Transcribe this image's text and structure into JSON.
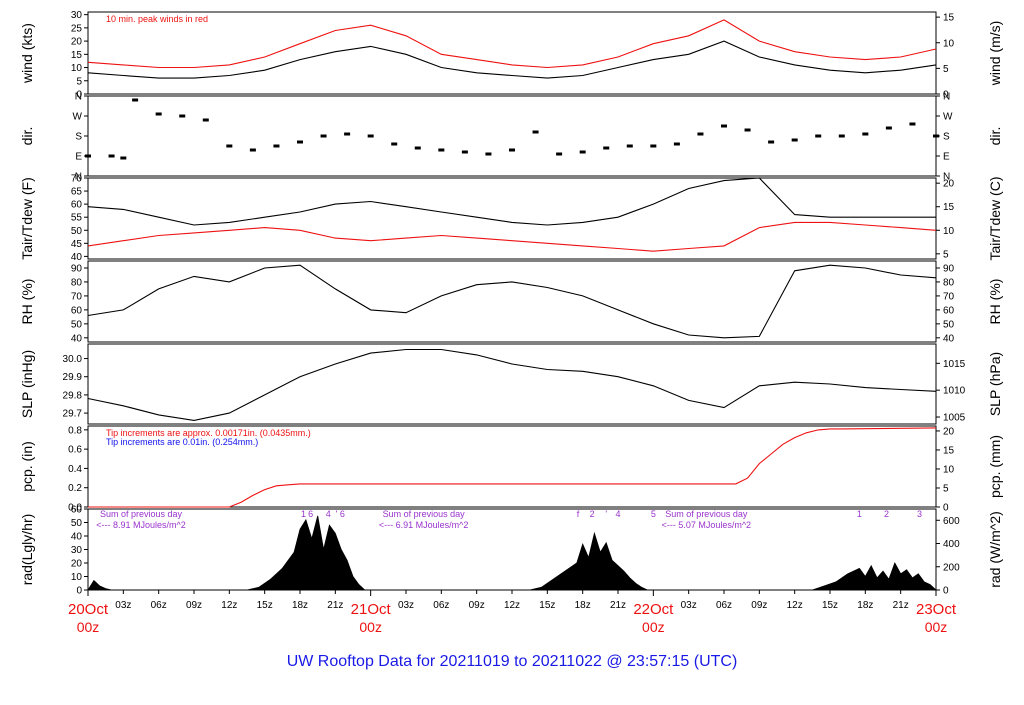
{
  "title": "UW Rooftop Data for 20211019  to  20211022 @ 23:57:15  (UTC)",
  "colors": {
    "red": "#ee1111",
    "blue": "#1111ee",
    "purple": "#9933cc",
    "title": "#1a1ae6"
  },
  "chart_data": [
    {
      "type": "line",
      "id": "wind",
      "ylabel": "wind (kts)",
      "ylabel_right": "wind (m/s)",
      "ylim": [
        0,
        31
      ],
      "yticks": [
        "0",
        "5",
        "10",
        "15",
        "20",
        "25",
        "30"
      ],
      "ylim_right": [
        0,
        16
      ],
      "yticks_right": [
        "0",
        "5",
        "10",
        "15"
      ],
      "annotation": "10 min. peak winds in red",
      "series": [
        {
          "color": "#000000",
          "x": [
            0,
            3,
            6,
            9,
            12,
            15,
            18,
            21,
            24,
            27,
            30,
            33,
            36,
            39,
            42,
            45,
            48,
            51,
            54,
            57,
            60,
            63,
            66,
            69,
            72
          ],
          "values": [
            8,
            7,
            6,
            6,
            7,
            9,
            13,
            16,
            18,
            15,
            10,
            8,
            7,
            6,
            7,
            10,
            13,
            15,
            20,
            14,
            11,
            9,
            8,
            9,
            11
          ]
        },
        {
          "color": "#ee1111",
          "x": [
            0,
            3,
            6,
            9,
            12,
            15,
            18,
            21,
            24,
            27,
            30,
            33,
            36,
            39,
            42,
            45,
            48,
            51,
            54,
            57,
            60,
            63,
            66,
            69,
            72
          ],
          "values": [
            12,
            11,
            10,
            10,
            11,
            14,
            19,
            24,
            26,
            22,
            15,
            13,
            11,
            10,
            11,
            14,
            19,
            22,
            28,
            20,
            16,
            14,
            13,
            14,
            17
          ]
        }
      ]
    },
    {
      "type": "scatter",
      "id": "dir",
      "ylabel": "dir.",
      "ylabel_right": "dir.",
      "ylim": [
        0,
        4
      ],
      "yticks": [
        "N",
        "E",
        "S",
        "W",
        "N"
      ],
      "yticks_right": [
        "N",
        "E",
        "S",
        "W",
        "N"
      ],
      "series": [
        {
          "color": "#000000",
          "x": [
            0,
            2,
            3,
            4,
            6,
            8,
            10,
            12,
            14,
            16,
            18,
            20,
            22,
            24,
            26,
            28,
            30,
            32,
            34,
            36,
            38,
            40,
            42,
            44,
            46,
            48,
            50,
            52,
            54,
            56,
            58,
            60,
            62,
            64,
            66,
            68,
            70,
            72
          ],
          "values": [
            1,
            1,
            0.9,
            3.8,
            3.1,
            3.0,
            2.8,
            1.5,
            1.3,
            1.5,
            1.7,
            2.0,
            2.1,
            2.0,
            1.6,
            1.4,
            1.3,
            1.2,
            1.1,
            1.3,
            2.2,
            1.1,
            1.2,
            1.4,
            1.5,
            1.5,
            1.6,
            2.1,
            2.5,
            2.3,
            1.7,
            1.8,
            2.0,
            2.0,
            2.1,
            2.4,
            2.6,
            2.0
          ]
        }
      ]
    },
    {
      "type": "line",
      "id": "temp",
      "ylabel": "Tair/Tdew (F)",
      "ylabel_right": "Tair/Tdew (C)",
      "ylim": [
        39,
        70
      ],
      "yticks": [
        "40",
        "45",
        "50",
        "55",
        "60",
        "65",
        "70"
      ],
      "ylim_right": [
        3.9,
        21.1
      ],
      "yticks_right": [
        "5",
        "10",
        "15",
        "20"
      ],
      "series": [
        {
          "color": "#000000",
          "x": [
            0,
            3,
            6,
            9,
            12,
            15,
            18,
            21,
            24,
            27,
            30,
            33,
            36,
            39,
            42,
            45,
            48,
            51,
            54,
            57,
            60,
            63,
            66,
            69,
            72
          ],
          "values": [
            59,
            58,
            55,
            52,
            53,
            55,
            57,
            60,
            61,
            59,
            57,
            55,
            53,
            52,
            53,
            55,
            60,
            66,
            69,
            70,
            56,
            55,
            55,
            55,
            55
          ]
        },
        {
          "color": "#ee1111",
          "x": [
            0,
            3,
            6,
            9,
            12,
            15,
            18,
            21,
            24,
            27,
            30,
            33,
            36,
            39,
            42,
            45,
            48,
            51,
            54,
            57,
            60,
            63,
            66,
            69,
            72
          ],
          "values": [
            44,
            46,
            48,
            49,
            50,
            51,
            50,
            47,
            46,
            47,
            48,
            47,
            46,
            45,
            44,
            43,
            42,
            43,
            44,
            51,
            53,
            53,
            52,
            51,
            50
          ]
        }
      ]
    },
    {
      "type": "line",
      "id": "rh",
      "ylabel": "RH (%)",
      "ylabel_right": "RH (%)",
      "ylim": [
        37,
        95
      ],
      "yticks": [
        "40",
        "50",
        "60",
        "70",
        "80",
        "90"
      ],
      "yticks_right": [
        "40",
        "50",
        "60",
        "70",
        "80",
        "90"
      ],
      "series": [
        {
          "color": "#000000",
          "x": [
            0,
            3,
            6,
            9,
            12,
            15,
            18,
            21,
            24,
            27,
            30,
            33,
            36,
            39,
            42,
            45,
            48,
            51,
            54,
            57,
            60,
            63,
            66,
            69,
            72
          ],
          "values": [
            56,
            60,
            75,
            84,
            80,
            90,
            92,
            75,
            60,
            58,
            70,
            78,
            80,
            76,
            70,
            60,
            50,
            42,
            40,
            41,
            88,
            92,
            90,
            85,
            83
          ]
        }
      ]
    },
    {
      "type": "line",
      "id": "slp",
      "ylabel": "SLP (inHg)",
      "ylabel_right": "SLP (hPa)",
      "ylim": [
        29.64,
        30.08
      ],
      "yticks": [
        "29.7",
        "29.8",
        "29.9",
        "30.0"
      ],
      "ylim_right": [
        1003.7,
        1018.6
      ],
      "yticks_right": [
        "1005",
        "1010",
        "1015"
      ],
      "series": [
        {
          "color": "#000000",
          "x": [
            0,
            3,
            6,
            9,
            12,
            15,
            18,
            21,
            24,
            27,
            30,
            33,
            36,
            39,
            42,
            45,
            48,
            51,
            54,
            57,
            60,
            63,
            66,
            69,
            72
          ],
          "values": [
            29.78,
            29.74,
            29.69,
            29.66,
            29.7,
            29.8,
            29.9,
            29.97,
            30.03,
            30.05,
            30.05,
            30.02,
            29.97,
            29.94,
            29.93,
            29.9,
            29.85,
            29.77,
            29.73,
            29.85,
            29.87,
            29.86,
            29.84,
            29.83,
            29.82
          ]
        }
      ]
    },
    {
      "type": "area",
      "id": "pcp",
      "ylabel": "pcp. (in)",
      "ylabel_right": "pcp. (mm)",
      "ylim": [
        0,
        0.84
      ],
      "yticks": [
        "0.0",
        "0.2",
        "0.4",
        "0.6",
        "0.8"
      ],
      "ylim_right": [
        0,
        21.3
      ],
      "yticks_right": [
        "0",
        "5",
        "10",
        "15",
        "20"
      ],
      "annotation_red": "Tip increments are approx. 0.00171in. (0.0435mm.)",
      "annotation_blue": "Tip increments are 0.01in. (0.254mm.)",
      "series": [
        {
          "color": "#ee1111",
          "x": [
            0,
            11,
            12,
            13,
            14,
            15,
            16,
            17,
            18,
            30,
            40,
            55,
            56,
            57,
            58,
            59,
            60,
            61,
            62,
            63,
            64,
            72
          ],
          "values": [
            0,
            0,
            0,
            0.05,
            0.12,
            0.18,
            0.22,
            0.23,
            0.24,
            0.24,
            0.24,
            0.24,
            0.3,
            0.45,
            0.55,
            0.65,
            0.72,
            0.77,
            0.8,
            0.81,
            0.81,
            0.82
          ]
        }
      ]
    },
    {
      "type": "area",
      "id": "rad",
      "ylabel": "rad(Lgly/hr)",
      "ylabel_right": "rad (W/m^2)",
      "ylim": [
        0,
        60
      ],
      "yticks": [
        "0",
        "10",
        "20",
        "30",
        "40",
        "50",
        "60"
      ],
      "ylim_right": [
        0,
        697
      ],
      "yticks_right": [
        "0",
        "200",
        "400",
        "600"
      ],
      "sum_label": "Sum of previous day",
      "sums": [
        "<--- 8.91 MJoules/m^2",
        "<--- 6.91 MJoules/m^2",
        "<--- 5.07 MJoules/m^2"
      ],
      "sum_x": [
        4.5,
        28.5,
        52.5
      ],
      "top_digits": [
        {
          "x": 18.3,
          "t": "1"
        },
        {
          "x": 18.9,
          "t": "6"
        },
        {
          "x": 20.4,
          "t": "4"
        },
        {
          "x": 21.1,
          "t": "'"
        },
        {
          "x": 21.6,
          "t": "6"
        },
        {
          "x": 41.6,
          "t": "f"
        },
        {
          "x": 42.8,
          "t": "2"
        },
        {
          "x": 44.0,
          "t": "'"
        },
        {
          "x": 45.0,
          "t": "4"
        },
        {
          "x": 48.0,
          "t": "5"
        },
        {
          "x": 65.5,
          "t": "1"
        },
        {
          "x": 67.8,
          "t": "2"
        },
        {
          "x": 70.6,
          "t": "3"
        }
      ],
      "series": [
        {
          "color": "#000000",
          "x": [
            0,
            0.5,
            1,
            1.5,
            2,
            13.5,
            14.5,
            15.5,
            16.5,
            17.5,
            18.0,
            18.5,
            19.0,
            19.5,
            20.0,
            20.5,
            21.0,
            21.5,
            22.0,
            22.5,
            23.0,
            23.5,
            37.5,
            38.5,
            39.5,
            40.5,
            41.5,
            42.0,
            42.5,
            43.0,
            43.5,
            44.0,
            44.5,
            45.0,
            45.5,
            46.0,
            46.5,
            47.0,
            47.5,
            61.5,
            62.5,
            63.5,
            64.5,
            65.5,
            66.0,
            66.5,
            67.0,
            67.5,
            68.0,
            68.5,
            69.0,
            69.5,
            70.0,
            70.5,
            71.0,
            71.5,
            72
          ],
          "values": [
            0,
            7,
            3,
            1,
            0,
            0,
            2,
            8,
            16,
            28,
            45,
            52,
            38,
            55,
            30,
            48,
            42,
            30,
            22,
            10,
            4,
            0,
            0,
            2,
            8,
            14,
            20,
            34,
            24,
            42,
            28,
            35,
            22,
            18,
            14,
            9,
            5,
            2,
            0,
            0,
            3,
            6,
            12,
            16,
            10,
            18,
            9,
            14,
            8,
            20,
            12,
            15,
            9,
            12,
            6,
            4,
            0
          ]
        }
      ]
    }
  ],
  "xaxis": {
    "ticks": [
      {
        "h": 3,
        "label": "03z"
      },
      {
        "h": 6,
        "label": "06z"
      },
      {
        "h": 9,
        "label": "09z"
      },
      {
        "h": 12,
        "label": "12z"
      },
      {
        "h": 15,
        "label": "15z"
      },
      {
        "h": 18,
        "label": "18z"
      },
      {
        "h": 21,
        "label": "21z"
      },
      {
        "h": 27,
        "label": "03z"
      },
      {
        "h": 30,
        "label": "06z"
      },
      {
        "h": 33,
        "label": "09z"
      },
      {
        "h": 36,
        "label": "12z"
      },
      {
        "h": 39,
        "label": "15z"
      },
      {
        "h": 42,
        "label": "18z"
      },
      {
        "h": 45,
        "label": "21z"
      },
      {
        "h": 51,
        "label": "03z"
      },
      {
        "h": 54,
        "label": "06z"
      },
      {
        "h": 57,
        "label": "09z"
      },
      {
        "h": 60,
        "label": "12z"
      },
      {
        "h": 63,
        "label": "15z"
      },
      {
        "h": 66,
        "label": "18z"
      },
      {
        "h": 69,
        "label": "21z"
      }
    ],
    "days": [
      {
        "h": 0,
        "label": "20Oct",
        "sub": "00z"
      },
      {
        "h": 24,
        "label": "21Oct",
        "sub": "00z"
      },
      {
        "h": 48,
        "label": "22Oct",
        "sub": "00z"
      },
      {
        "h": 72,
        "label": "23Oct",
        "sub": "00z"
      }
    ]
  }
}
